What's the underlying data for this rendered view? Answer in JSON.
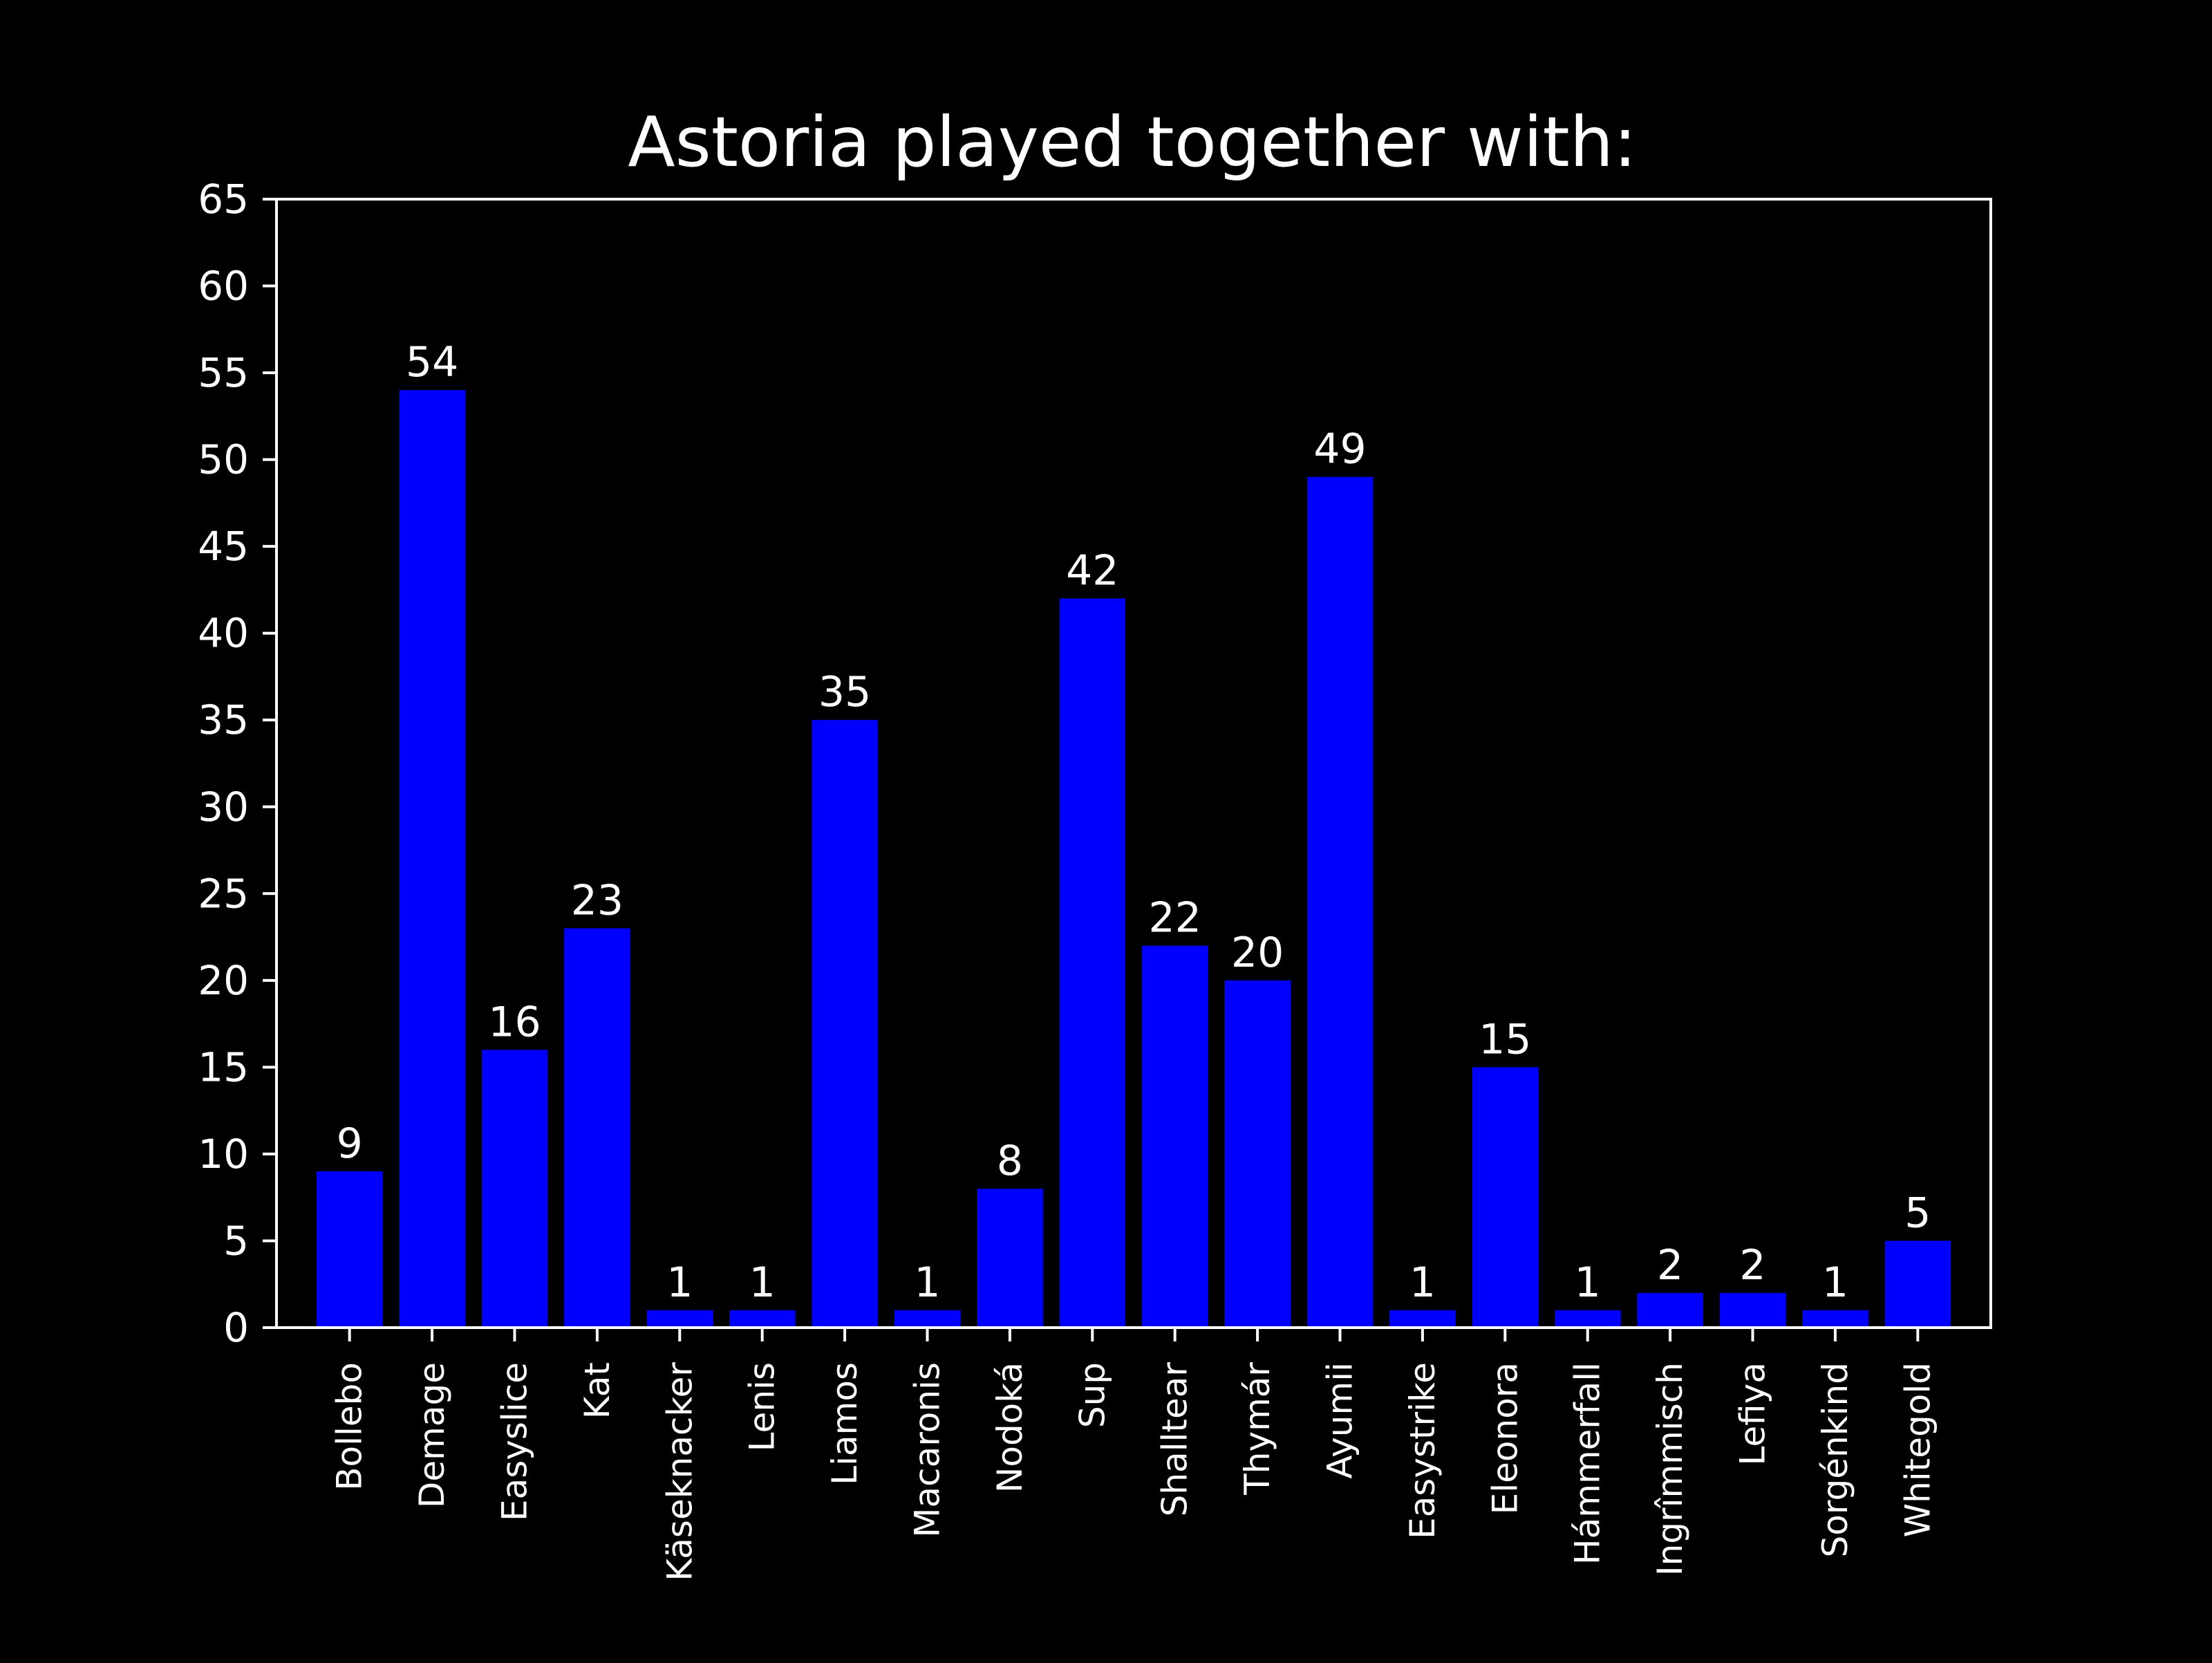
{
  "chart_data": {
    "type": "bar",
    "title": "Astoria played together with:",
    "xlabel": "",
    "ylabel": "",
    "categories": [
      "Bollebo",
      "Demage",
      "Easyslice",
      "Kat",
      "Käseknacker",
      "Lenis",
      "Liamos",
      "Macaronis",
      "Nodoká",
      "Sup",
      "Shalltear",
      "Thymár",
      "Ayumii",
      "Easystrike",
      "Eleonora",
      "Hámmerfall",
      "Ingrîmmisch",
      "Lefiya",
      "Sorgénkind",
      "Whitegold"
    ],
    "values": [
      9,
      54,
      16,
      23,
      1,
      1,
      35,
      1,
      8,
      42,
      22,
      20,
      49,
      1,
      15,
      1,
      2,
      2,
      1,
      5
    ],
    "ylim": [
      0,
      65
    ],
    "yticks": [
      0,
      5,
      10,
      15,
      20,
      25,
      30,
      35,
      40,
      45,
      50,
      55,
      60,
      65
    ],
    "grid": false,
    "legend": "none",
    "colors": {
      "background": "#000000",
      "bar": "#0000ff",
      "text": "#ffffff",
      "axes": "#ffffff"
    }
  }
}
